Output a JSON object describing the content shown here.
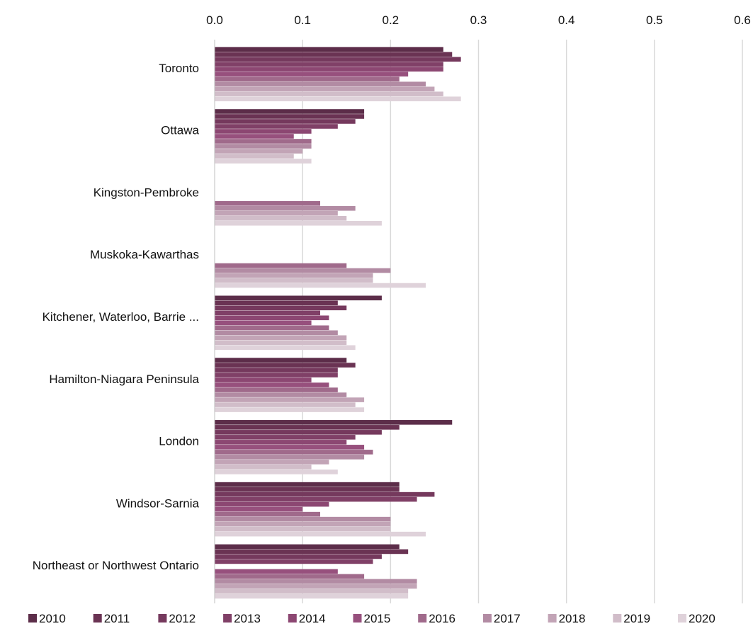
{
  "chart_data": {
    "type": "bar",
    "orientation": "horizontal",
    "title": "",
    "xlabel": "",
    "ylabel": "",
    "xlim": [
      0,
      0.6
    ],
    "x_ticks": [
      "0.0",
      "0.1",
      "0.2",
      "0.3",
      "0.4",
      "0.5",
      "0.6"
    ],
    "x_axis_position": "top",
    "grid": "vertical",
    "legend_position": "bottom",
    "categories": [
      "Toronto",
      "Ottawa",
      "Kingston-Pembroke",
      "Muskoka-Kawarthas",
      "Kitchener, Waterloo, Barrie ...",
      "Hamilton-Niagara Peninsula",
      "London",
      "Windsor-Sarnia",
      "Northeast or Northwest Ontario"
    ],
    "series": [
      {
        "name": "2010",
        "color": "#5c2d49",
        "values": [
          0.26,
          0.17,
          null,
          null,
          0.19,
          0.15,
          0.27,
          0.21,
          0.21
        ]
      },
      {
        "name": "2011",
        "color": "#6a3353",
        "values": [
          0.27,
          0.17,
          null,
          null,
          0.14,
          0.16,
          0.21,
          0.21,
          0.22
        ]
      },
      {
        "name": "2012",
        "color": "#75395d",
        "values": [
          0.28,
          0.16,
          null,
          null,
          0.15,
          0.14,
          0.19,
          0.25,
          0.19
        ]
      },
      {
        "name": "2013",
        "color": "#804067",
        "values": [
          0.26,
          0.14,
          null,
          null,
          0.12,
          0.14,
          0.16,
          0.23,
          0.18
        ]
      },
      {
        "name": "2014",
        "color": "#8c4772",
        "values": [
          0.26,
          0.11,
          null,
          null,
          0.13,
          0.11,
          0.15,
          0.13,
          null
        ]
      },
      {
        "name": "2015",
        "color": "#97507d",
        "values": [
          0.22,
          0.09,
          null,
          null,
          0.11,
          0.13,
          0.17,
          0.1,
          0.14
        ]
      },
      {
        "name": "2016",
        "color": "#a06a8b",
        "values": [
          0.21,
          0.11,
          0.12,
          0.15,
          0.13,
          0.14,
          0.18,
          0.12,
          0.17
        ]
      },
      {
        "name": "2017",
        "color": "#b28ba3",
        "values": [
          0.24,
          0.11,
          0.16,
          0.2,
          0.14,
          0.15,
          0.17,
          0.2,
          0.23
        ]
      },
      {
        "name": "2018",
        "color": "#c2a4b6",
        "values": [
          0.25,
          0.1,
          0.14,
          0.18,
          0.15,
          0.17,
          0.13,
          0.2,
          0.23
        ]
      },
      {
        "name": "2019",
        "color": "#d1bdc9",
        "values": [
          0.26,
          0.09,
          0.15,
          0.18,
          0.15,
          0.16,
          0.11,
          0.2,
          0.22
        ]
      },
      {
        "name": "2020",
        "color": "#dfd2da",
        "values": [
          0.28,
          0.11,
          0.19,
          0.24,
          0.16,
          0.17,
          0.14,
          0.24,
          0.22
        ]
      }
    ]
  }
}
